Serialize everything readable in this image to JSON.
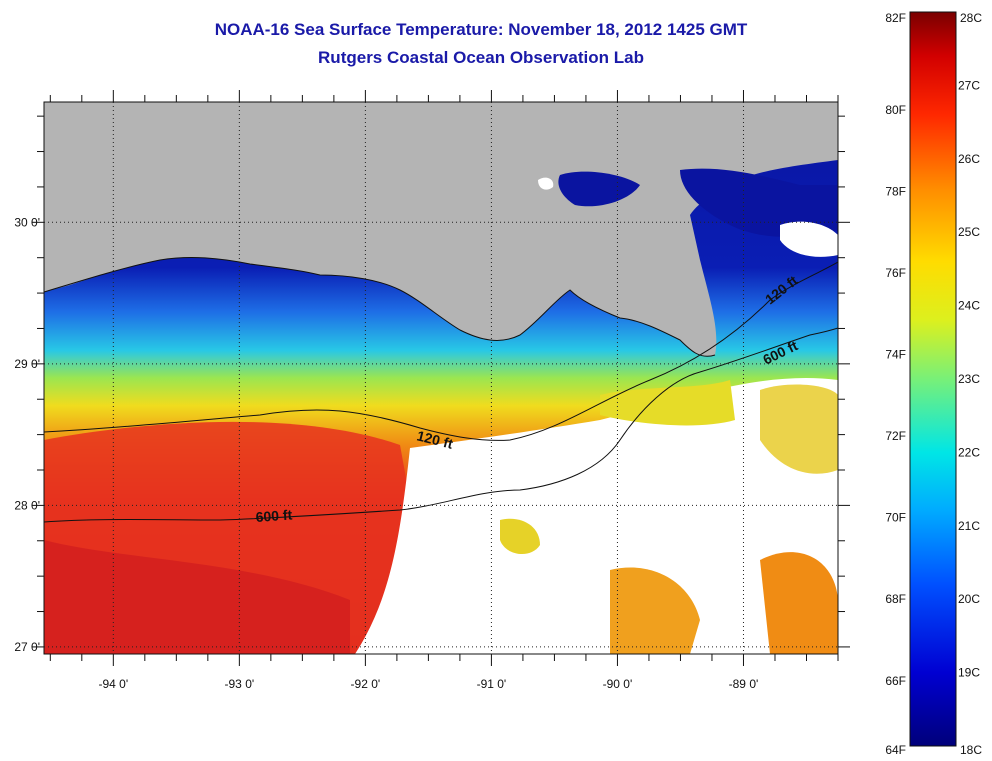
{
  "header": {
    "title": "NOAA-16 Sea Surface Temperature:  November 18, 2012 1425 GMT",
    "subtitle": "Rutgers Coastal Ocean Observation Lab"
  },
  "axes": {
    "lon_ticks": [
      {
        "value": -94,
        "label": "-94 0'"
      },
      {
        "value": -93,
        "label": "-93 0'"
      },
      {
        "value": -92,
        "label": "-92 0'"
      },
      {
        "value": -91,
        "label": "-91 0'"
      },
      {
        "value": -90,
        "label": "-90 0'"
      },
      {
        "value": -89,
        "label": "-89 0'"
      }
    ],
    "lat_ticks": [
      {
        "value": 27,
        "label": "27 0'"
      },
      {
        "value": 28,
        "label": "28 0'"
      },
      {
        "value": 29,
        "label": "29 0'"
      },
      {
        "value": 30,
        "label": "30 0'"
      }
    ],
    "lon_range": [
      -94.55,
      -88.25
    ],
    "lat_range": [
      26.95,
      30.85
    ]
  },
  "contours": [
    {
      "label": "120 ft"
    },
    {
      "label": "600 ft"
    },
    {
      "label": "120 ft"
    },
    {
      "label": "600 ft"
    }
  ],
  "colorbar": {
    "fahrenheit_labels": [
      "82F",
      "80F",
      "78F",
      "76F",
      "74F",
      "72F",
      "70F",
      "68F",
      "66F",
      "64F"
    ],
    "celsius_labels": [
      "28C",
      "27C",
      "26C",
      "25C",
      "24C",
      "23C",
      "22C",
      "21C",
      "20C",
      "19C",
      "18C"
    ],
    "range_c": [
      18,
      28
    ]
  },
  "colors": {
    "land": "#b4b4b4",
    "title": "#1a1aa8",
    "cloud": "#ffffff"
  }
}
